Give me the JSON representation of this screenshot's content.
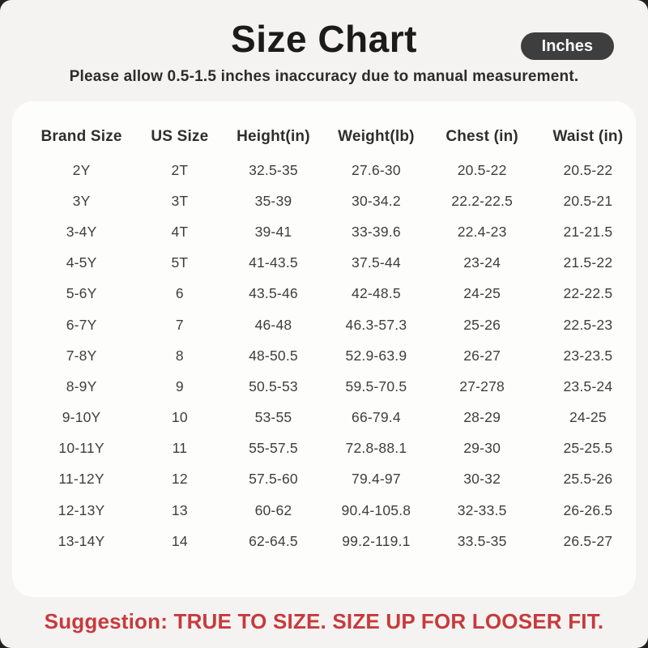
{
  "page": {
    "title": "Size Chart",
    "unit_badge": "Inches",
    "subtitle": "Please allow 0.5-1.5 inches inaccuracy due to manual measurement.",
    "suggestion": "Suggestion: TRUE TO SIZE. SIZE UP FOR LOOSER FIT."
  },
  "colors": {
    "page_background": "#f4f3f1",
    "card_background": "#fdfdfc",
    "badge_background": "#3e3e3e",
    "badge_text": "#fafafa",
    "title_text": "#1b1b1b",
    "table_text": "#3e3e3e",
    "suggestion_red": "#c83a3c"
  },
  "chart_data": {
    "type": "table",
    "title": "Size Chart",
    "unit": "Inches",
    "columns": [
      "Brand Size",
      "US Size",
      "Height(in)",
      "Weight(lb)",
      "Chest (in)",
      "Waist (in)"
    ],
    "rows": [
      [
        "2Y",
        "2T",
        "32.5-35",
        "27.6-30",
        "20.5-22",
        "20.5-22"
      ],
      [
        "3Y",
        "3T",
        "35-39",
        "30-34.2",
        "22.2-22.5",
        "20.5-21"
      ],
      [
        "3-4Y",
        "4T",
        "39-41",
        "33-39.6",
        "22.4-23",
        "21-21.5"
      ],
      [
        "4-5Y",
        "5T",
        "41-43.5",
        "37.5-44",
        "23-24",
        "21.5-22"
      ],
      [
        "5-6Y",
        "6",
        "43.5-46",
        "42-48.5",
        "24-25",
        "22-22.5"
      ],
      [
        "6-7Y",
        "7",
        "46-48",
        "46.3-57.3",
        "25-26",
        "22.5-23"
      ],
      [
        "7-8Y",
        "8",
        "48-50.5",
        "52.9-63.9",
        "26-27",
        "23-23.5"
      ],
      [
        "8-9Y",
        "9",
        "50.5-53",
        "59.5-70.5",
        "27-278",
        "23.5-24"
      ],
      [
        "9-10Y",
        "10",
        "53-55",
        "66-79.4",
        "28-29",
        "24-25"
      ],
      [
        "10-11Y",
        "11",
        "55-57.5",
        "72.8-88.1",
        "29-30",
        "25-25.5"
      ],
      [
        "11-12Y",
        "12",
        "57.5-60",
        "79.4-97",
        "30-32",
        "25.5-26"
      ],
      [
        "12-13Y",
        "13",
        "60-62",
        "90.4-105.8",
        "32-33.5",
        "26-26.5"
      ],
      [
        "13-14Y",
        "14",
        "62-64.5",
        "99.2-119.1",
        "33.5-35",
        "26.5-27"
      ]
    ]
  }
}
